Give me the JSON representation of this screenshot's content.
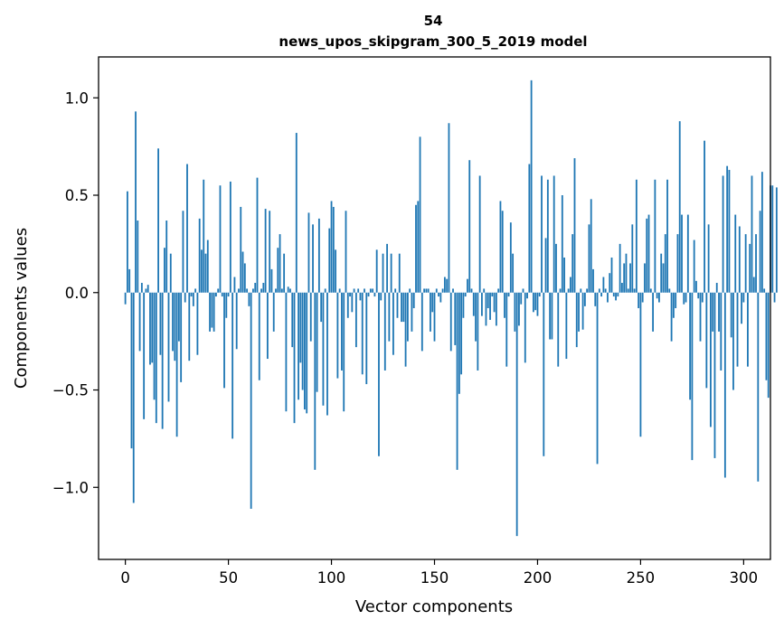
{
  "chart_data": {
    "type": "bar",
    "title_line1": "54",
    "title_line2": "news_upos_skipgram_300_5_2019 model",
    "xlabel": "Vector components",
    "ylabel": "Components values",
    "xlim": [
      -13,
      313
    ],
    "ylim": [
      -1.37,
      1.21
    ],
    "xticks": [
      0,
      50,
      100,
      150,
      200,
      250,
      300
    ],
    "yticks": [
      -1.0,
      -0.5,
      0.0,
      0.5,
      1.0
    ],
    "ytick_labels": [
      "−1.0",
      "−0.5",
      "0.0",
      "0.5",
      "1.0"
    ],
    "bar_color": "#1f77b4",
    "grid": false,
    "legend": "none",
    "values": [
      -0.06,
      0.52,
      0.12,
      -0.8,
      -1.08,
      0.93,
      0.37,
      -0.3,
      0.05,
      -0.65,
      0.02,
      0.04,
      -0.37,
      -0.36,
      -0.55,
      -0.67,
      0.74,
      -0.32,
      -0.7,
      0.23,
      0.37,
      -0.56,
      0.2,
      -0.3,
      -0.35,
      -0.74,
      -0.25,
      -0.46,
      0.42,
      -0.05,
      0.66,
      -0.35,
      -0.02,
      -0.07,
      0.02,
      -0.32,
      0.38,
      0.22,
      0.58,
      0.2,
      0.27,
      -0.2,
      -0.18,
      -0.2,
      -0.02,
      0.02,
      0.55,
      -0.02,
      -0.49,
      -0.13,
      -0.02,
      0.57,
      -0.75,
      0.08,
      -0.29,
      0.02,
      0.44,
      0.21,
      0.15,
      0.02,
      -0.07,
      -1.11,
      0.02,
      0.05,
      0.59,
      -0.45,
      0.02,
      0.05,
      0.43,
      -0.34,
      0.42,
      0.12,
      -0.2,
      0.02,
      0.23,
      0.3,
      0.02,
      0.2,
      -0.61,
      0.03,
      0.02,
      -0.28,
      -0.67,
      0.82,
      -0.55,
      -0.36,
      -0.5,
      -0.6,
      -0.62,
      0.41,
      -0.25,
      0.35,
      -0.91,
      -0.51,
      0.38,
      -0.15,
      -0.58,
      0.02,
      -0.63,
      0.33,
      0.47,
      0.44,
      0.22,
      -0.44,
      0.02,
      -0.4,
      -0.61,
      0.42,
      -0.13,
      -0.02,
      -0.1,
      0.02,
      -0.28,
      0.02,
      -0.04,
      -0.42,
      0.02,
      -0.47,
      -0.02,
      0.02,
      0.02,
      -0.02,
      0.22,
      -0.84,
      -0.04,
      0.2,
      -0.4,
      0.25,
      -0.25,
      0.2,
      -0.32,
      0.02,
      -0.13,
      0.2,
      -0.15,
      -0.15,
      -0.38,
      -0.25,
      0.02,
      -0.2,
      -0.08,
      0.45,
      0.47,
      0.8,
      -0.3,
      0.02,
      0.02,
      0.02,
      -0.2,
      -0.1,
      -0.25,
      0.02,
      -0.02,
      -0.05,
      0.02,
      0.08,
      0.07,
      0.87,
      -0.3,
      0.02,
      -0.27,
      -0.91,
      -0.52,
      -0.42,
      -0.13,
      -0.02,
      0.07,
      0.68,
      0.02,
      -0.12,
      -0.25,
      -0.4,
      0.6,
      -0.12,
      0.02,
      -0.17,
      -0.08,
      -0.14,
      -0.02,
      -0.1,
      -0.17,
      0.02,
      0.47,
      0.42,
      -0.13,
      -0.38,
      -0.02,
      0.36,
      0.2,
      -0.2,
      -1.25,
      -0.17,
      -0.06,
      0.02,
      -0.36,
      -0.03,
      0.66,
      1.09,
      -0.1,
      -0.09,
      -0.12,
      -0.02,
      0.6,
      -0.84,
      0.28,
      0.58,
      -0.24,
      -0.24,
      0.6,
      0.25,
      -0.38,
      0.02,
      0.5,
      0.18,
      -0.34,
      0.02,
      0.08,
      0.3,
      0.69,
      -0.28,
      -0.2,
      0.02,
      -0.19,
      -0.07,
      0.02,
      0.35,
      0.48,
      0.12,
      -0.07,
      -0.88,
      0.02,
      -0.02,
      0.08,
      0.02,
      -0.05,
      0.1,
      0.18,
      -0.02,
      -0.04,
      -0.02,
      0.25,
      0.05,
      0.15,
      0.2,
      0.02,
      0.15,
      0.35,
      0.02,
      0.58,
      -0.08,
      -0.74,
      -0.05,
      0.15,
      0.38,
      0.4,
      0.02,
      -0.2,
      0.58,
      -0.03,
      -0.05,
      0.2,
      0.15,
      0.3,
      0.58,
      0.02,
      -0.25,
      -0.13,
      -0.08,
      0.3,
      0.88,
      0.4,
      -0.06,
      -0.05,
      0.4,
      -0.55,
      -0.86,
      0.27,
      0.06,
      -0.03,
      -0.25,
      -0.05,
      0.78,
      -0.49,
      0.35,
      -0.69,
      -0.2,
      -0.85,
      0.05,
      -0.2,
      -0.4,
      0.6,
      -0.95,
      0.65,
      0.63,
      -0.23,
      -0.5,
      0.4,
      -0.38,
      0.34,
      -0.16,
      -0.05,
      0.3,
      -0.38,
      0.25,
      0.6,
      0.08,
      0.3,
      -0.97,
      0.42,
      0.62,
      0.02,
      -0.45,
      -0.54,
      0.55,
      0.55,
      -0.05,
      0.54
    ]
  }
}
